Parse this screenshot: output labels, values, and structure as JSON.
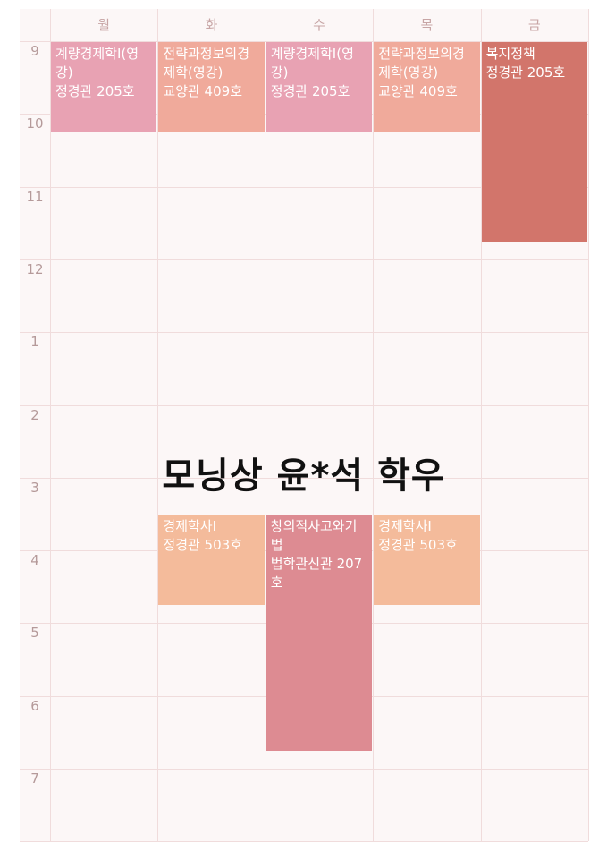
{
  "days": [
    "월",
    "화",
    "수",
    "목",
    "금"
  ],
  "hours": [
    "9",
    "10",
    "11",
    "12",
    "1",
    "2",
    "3",
    "4",
    "5",
    "6",
    "7"
  ],
  "start_hour": 9,
  "courses": [
    {
      "day": 0,
      "start": 9.0,
      "end": 10.25,
      "name": "계량경제학I(영강)",
      "room": "정경관 205호",
      "color": "#e8a2b3"
    },
    {
      "day": 1,
      "start": 9.0,
      "end": 10.25,
      "name": "전략과정보의경제학(영강)",
      "room": "교양관 409호",
      "color": "#f0aa9b"
    },
    {
      "day": 2,
      "start": 9.0,
      "end": 10.25,
      "name": "계량경제학I(영강)",
      "room": "정경관 205호",
      "color": "#e8a2b3"
    },
    {
      "day": 3,
      "start": 9.0,
      "end": 10.25,
      "name": "전략과정보의경제학(영강)",
      "room": "교양관 409호",
      "color": "#f0aa9b"
    },
    {
      "day": 4,
      "start": 9.0,
      "end": 11.75,
      "name": "복지정책",
      "room": "정경관 205호",
      "color": "#d2756b"
    },
    {
      "day": 1,
      "start": 15.5,
      "end": 16.75,
      "name": "경제학사I",
      "room": "정경관 503호",
      "color": "#f4bb9b"
    },
    {
      "day": 2,
      "start": 15.5,
      "end": 18.75,
      "name": "창의적사고와기법",
      "room": "법학관신관 207호",
      "color": "#dd8b92"
    },
    {
      "day": 3,
      "start": 15.5,
      "end": 16.75,
      "name": "경제학사I",
      "room": "정경관 503호",
      "color": "#f4bb9b"
    }
  ],
  "caption": "모닝상 윤*석 학우"
}
